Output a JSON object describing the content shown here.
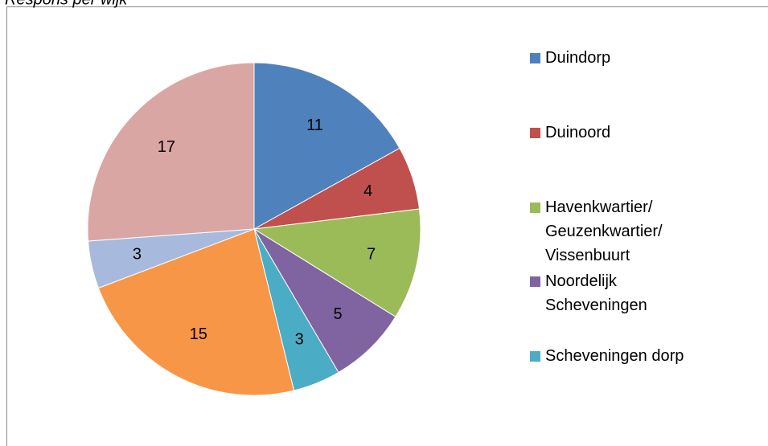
{
  "chart_data": {
    "type": "pie",
    "title": "Respons per wijk",
    "categories": [
      "Duindorp",
      "Duinoord",
      "Havenkwartier/ Geuzenkwartier/ Vissenbuurt",
      "Noordelijk Scheveningen",
      "Scheveningen dorp",
      null,
      null,
      null
    ],
    "values": [
      11,
      4,
      7,
      5,
      3,
      15,
      3,
      17
    ],
    "colors": [
      "#4f81bd",
      "#c0504d",
      "#9bbb59",
      "#8064a2",
      "#4bacc6",
      "#f79646",
      "#a7bade",
      "#d9a6a4"
    ]
  }
}
